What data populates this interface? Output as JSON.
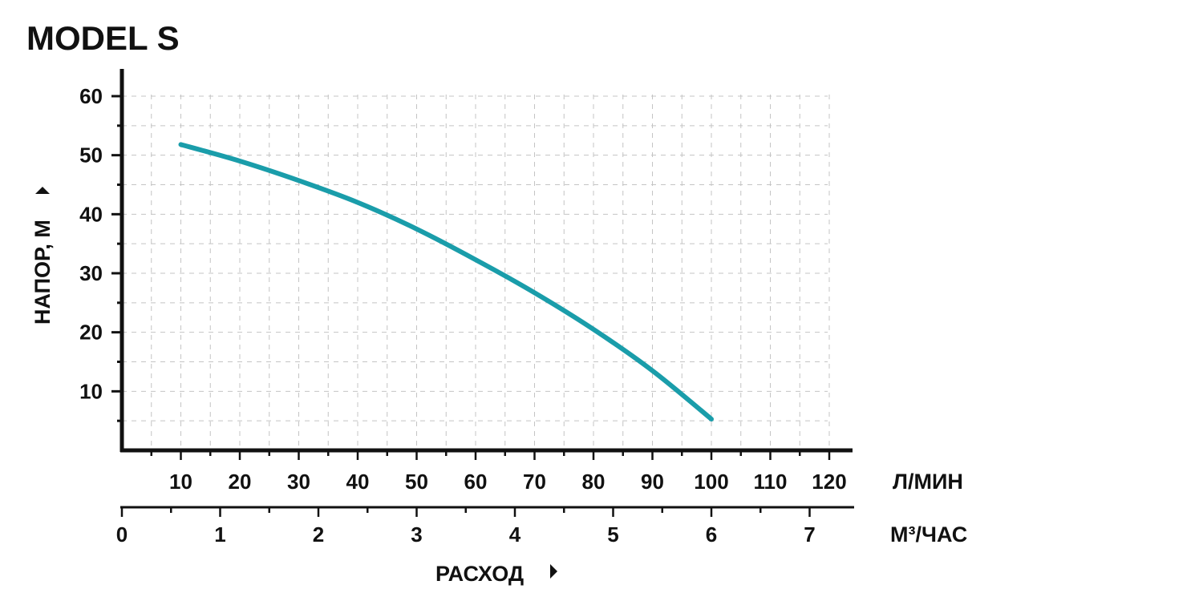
{
  "chart_data": {
    "type": "line",
    "title": "MODEL S",
    "ylabel": "НАПОР, М",
    "xlabel": "РАСХОД",
    "x_unit_primary": "Л/МИН",
    "x_unit_secondary": "М³/ЧАС",
    "xlim_l_min": [
      0,
      125
    ],
    "ylim": [
      0,
      60
    ],
    "x_ticks_l_min": [
      "10",
      "20",
      "30",
      "40",
      "50",
      "60",
      "70",
      "80",
      "90",
      "100",
      "110",
      "120"
    ],
    "x_ticks_m3_h": [
      "0",
      "1",
      "2",
      "3",
      "4",
      "5",
      "6",
      "7"
    ],
    "y_ticks": [
      "10",
      "20",
      "30",
      "40",
      "50",
      "60"
    ],
    "grid": true,
    "series": [
      {
        "color": "#1a9daa",
        "x": [
          10,
          20,
          30,
          40,
          50,
          60,
          70,
          80,
          90,
          100
        ],
        "y": [
          51.8,
          49,
          45.7,
          42,
          37.5,
          32.3,
          26.7,
          20.5,
          13.5,
          5.3
        ]
      }
    ]
  }
}
